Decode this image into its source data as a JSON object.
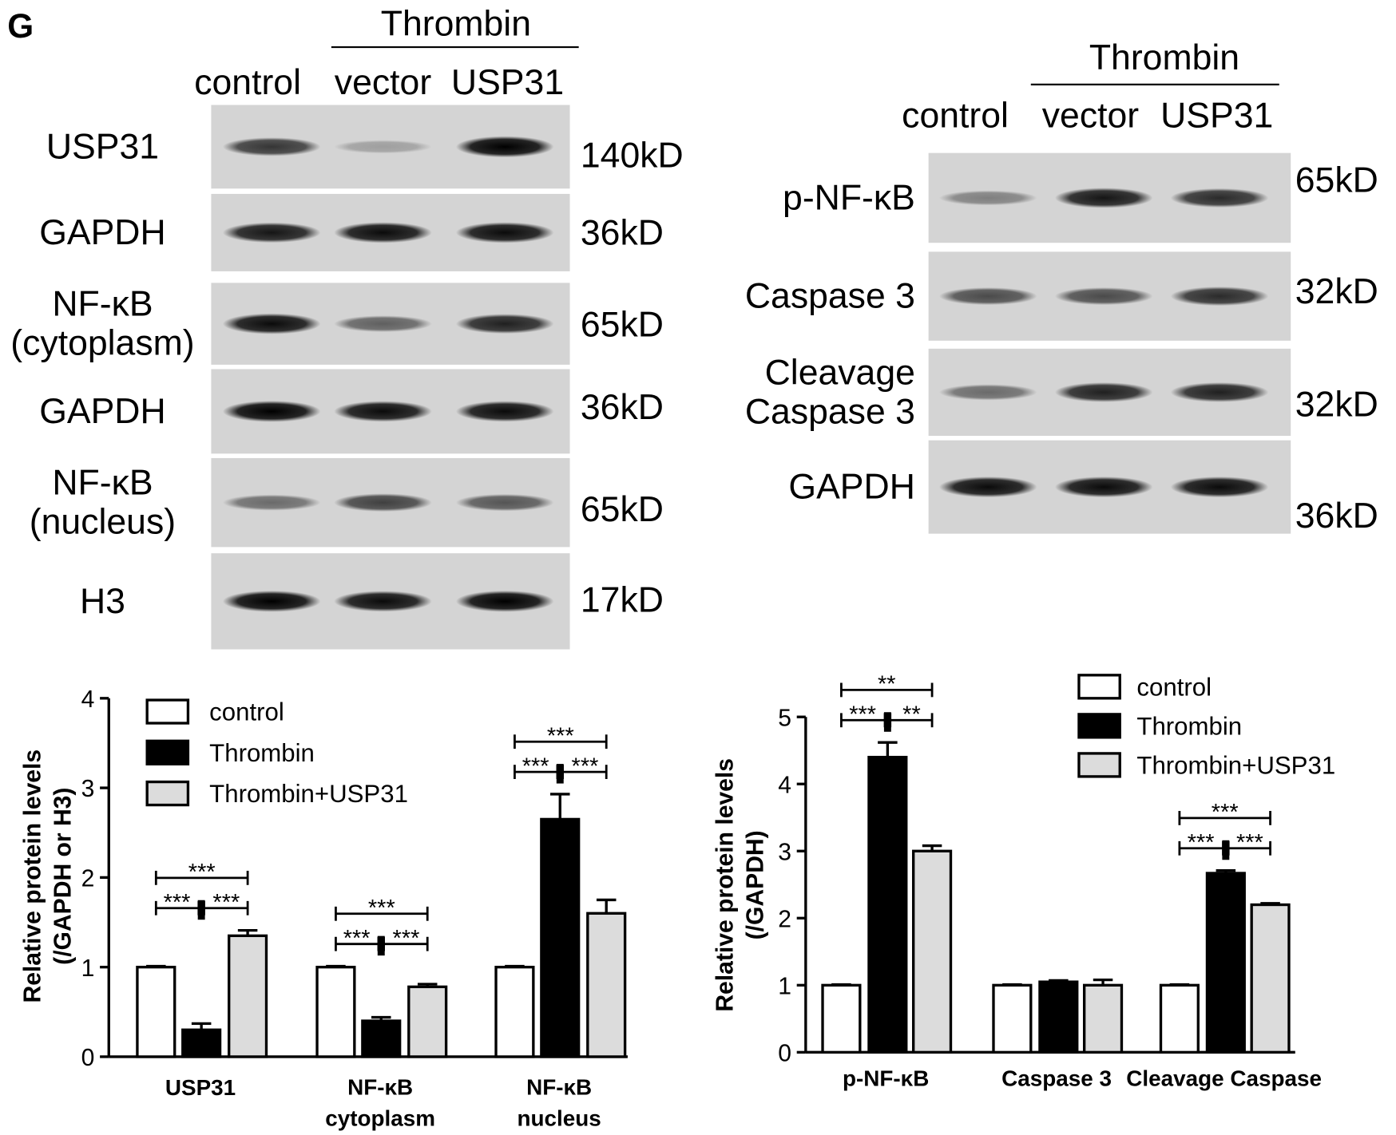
{
  "panel": "G",
  "blots": [
    {
      "group": "Thrombin",
      "lanes": [
        "control",
        "vector",
        "USP31"
      ],
      "rows": [
        {
          "label": "USP31",
          "size": "140kD"
        },
        {
          "label": "GAPDH",
          "size": "36kD"
        },
        {
          "label": "NF-κB\n(cytoplasm)",
          "size": "65kD"
        },
        {
          "label": "GAPDH",
          "size": "36kD"
        },
        {
          "label": "NF-κB\n(nucleus)",
          "size": "65kD"
        },
        {
          "label": "H3",
          "size": "17kD"
        }
      ]
    },
    {
      "group": "Thrombin",
      "lanes": [
        "control",
        "vector",
        "USP31"
      ],
      "rows": [
        {
          "label": "p-NF-κB",
          "size": "65kD"
        },
        {
          "label": "Caspase 3",
          "size": "32kD"
        },
        {
          "label": "Cleavage\nCaspase 3",
          "size": "32kD"
        },
        {
          "label": "GAPDH",
          "size": "36kD"
        }
      ]
    }
  ],
  "chart_data": [
    {
      "type": "bar",
      "y_label": "Relative protein levels\n(/GAPDH or H3)",
      "categories": [
        "USP31",
        "NF-κB\ncytoplasm",
        "NF-κB\nnucleus"
      ],
      "series": [
        {
          "name": "control",
          "color": "#ffffff",
          "values": [
            1,
            1,
            1
          ],
          "errors": [
            0.01,
            0.01,
            0.01
          ]
        },
        {
          "name": "Thrombin",
          "color": "#000000",
          "values": [
            0.3,
            0.4,
            2.65
          ],
          "errors": [
            0.07,
            0.04,
            0.28
          ]
        },
        {
          "name": "Thrombin+USP31",
          "color": "#dcdcdc",
          "values": [
            1.35,
            0.78,
            1.6
          ],
          "errors": [
            0.06,
            0.03,
            0.15
          ]
        }
      ],
      "significance": [
        [
          "***",
          "***",
          "***"
        ],
        [
          "***",
          "***",
          "***"
        ],
        [
          "***",
          "***",
          "***"
        ]
      ],
      "ylim": [
        0,
        4
      ],
      "yticks": [
        0,
        1,
        2,
        3,
        4
      ],
      "legend": "top-left"
    },
    {
      "type": "bar",
      "y_label": "Relative protein levels\n(/GAPDH)",
      "categories": [
        "p-NF-κB",
        "Caspase 3",
        "Cleavage Caspase"
      ],
      "series": [
        {
          "name": "control",
          "color": "#ffffff",
          "values": [
            1,
            1,
            1
          ],
          "errors": [
            0.01,
            0.01,
            0.01
          ]
        },
        {
          "name": "Thrombin",
          "color": "#000000",
          "values": [
            4.4,
            1.05,
            2.67
          ],
          "errors": [
            0.22,
            0.02,
            0.04
          ]
        },
        {
          "name": "Thrombin+USP31",
          "color": "#dcdcdc",
          "values": [
            3.0,
            1.0,
            2.2
          ],
          "errors": [
            0.08,
            0.08,
            0.02
          ]
        }
      ],
      "significance": [
        [
          "**",
          "***",
          "**"
        ],
        [],
        [
          "***",
          "***",
          "***"
        ]
      ],
      "ylim": [
        0,
        5
      ],
      "yticks": [
        0,
        1,
        2,
        3,
        4,
        5
      ],
      "legend": "top-right"
    }
  ]
}
